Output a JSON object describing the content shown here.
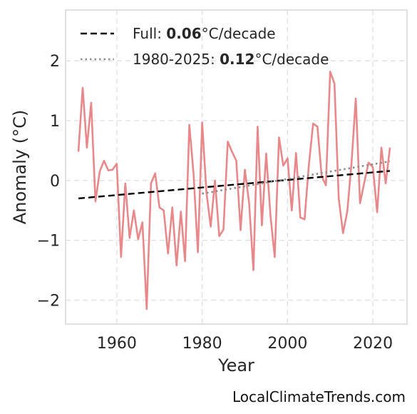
{
  "chart_data": {
    "type": "line",
    "xlabel": "Year",
    "ylabel": "Anomaly (°C)",
    "xlim": [
      1948.0,
      2028.0
    ],
    "ylim": [
      -2.4,
      2.85
    ],
    "xticks": [
      1960,
      1980,
      2000,
      2020
    ],
    "yticks": [
      -2,
      -1,
      0,
      1,
      2
    ],
    "ytick_labels": [
      "−2",
      "−1",
      "0",
      "1",
      "2"
    ],
    "grid": true,
    "legend_position": "top-left",
    "series": [
      {
        "key": "observed",
        "color": "#e8888a",
        "style": "solid",
        "x": [
          1951,
          1952,
          1953,
          1954,
          1955,
          1956,
          1957,
          1958,
          1959,
          1960,
          1961,
          1962,
          1963,
          1964,
          1965,
          1966,
          1967,
          1968,
          1969,
          1970,
          1971,
          1972,
          1973,
          1974,
          1975,
          1976,
          1977,
          1978,
          1979,
          1980,
          1981,
          1982,
          1983,
          1984,
          1985,
          1986,
          1987,
          1988,
          1989,
          1990,
          1991,
          1992,
          1993,
          1994,
          1995,
          1996,
          1997,
          1998,
          1999,
          2000,
          2001,
          2002,
          2003,
          2004,
          2005,
          2006,
          2007,
          2008,
          2009,
          2010,
          2011,
          2012,
          2013,
          2014,
          2015,
          2016,
          2017,
          2018,
          2019,
          2020,
          2021,
          2022,
          2023,
          2024
        ],
        "values": [
          0.48,
          1.55,
          0.55,
          1.3,
          -0.35,
          0.15,
          0.33,
          0.17,
          0.18,
          0.28,
          -1.28,
          -0.05,
          -0.96,
          -0.5,
          -0.98,
          -0.7,
          -2.15,
          -0.05,
          0.12,
          -0.45,
          -0.5,
          -1.22,
          -0.45,
          -1.42,
          -0.52,
          -1.35,
          0.93,
          0.1,
          -1.2,
          0.97,
          -0.2,
          -0.77,
          0.0,
          -0.93,
          -0.82,
          0.65,
          0.48,
          0.33,
          -0.83,
          0.18,
          -0.38,
          -1.5,
          0.9,
          -0.75,
          0.45,
          -0.58,
          -1.28,
          0.72,
          0.25,
          0.37,
          -0.5,
          0.46,
          -0.62,
          -0.65,
          0.26,
          0.95,
          0.9,
          0.07,
          -0.08,
          1.82,
          1.62,
          -0.3,
          -0.88,
          -0.52,
          0.3,
          1.37,
          -0.38,
          -0.03,
          0.3,
          0.22,
          -0.53,
          0.55,
          -0.05,
          0.55
        ]
      },
      {
        "key": "trend_full",
        "name": "Full: 0.06°C/decade",
        "color": "#000000",
        "style": "dashed",
        "x": [
          1951,
          2024
        ],
        "values": [
          -0.3,
          0.16
        ]
      },
      {
        "key": "trend_recent",
        "name": "1980-2025: 0.12°C/decade",
        "color": "#8c8c8c",
        "style": "dotted",
        "x": [
          1980,
          2024
        ],
        "values": [
          -0.22,
          0.32
        ]
      }
    ],
    "legend": [
      {
        "series": "trend_full",
        "prefix": "Full: ",
        "value": "0.06",
        "suffix": "°C/decade"
      },
      {
        "series": "trend_recent",
        "prefix": "1980-2025: ",
        "value": "0.12",
        "suffix": "°C/decade"
      }
    ]
  },
  "credit": "LocalClimateTrends.com"
}
